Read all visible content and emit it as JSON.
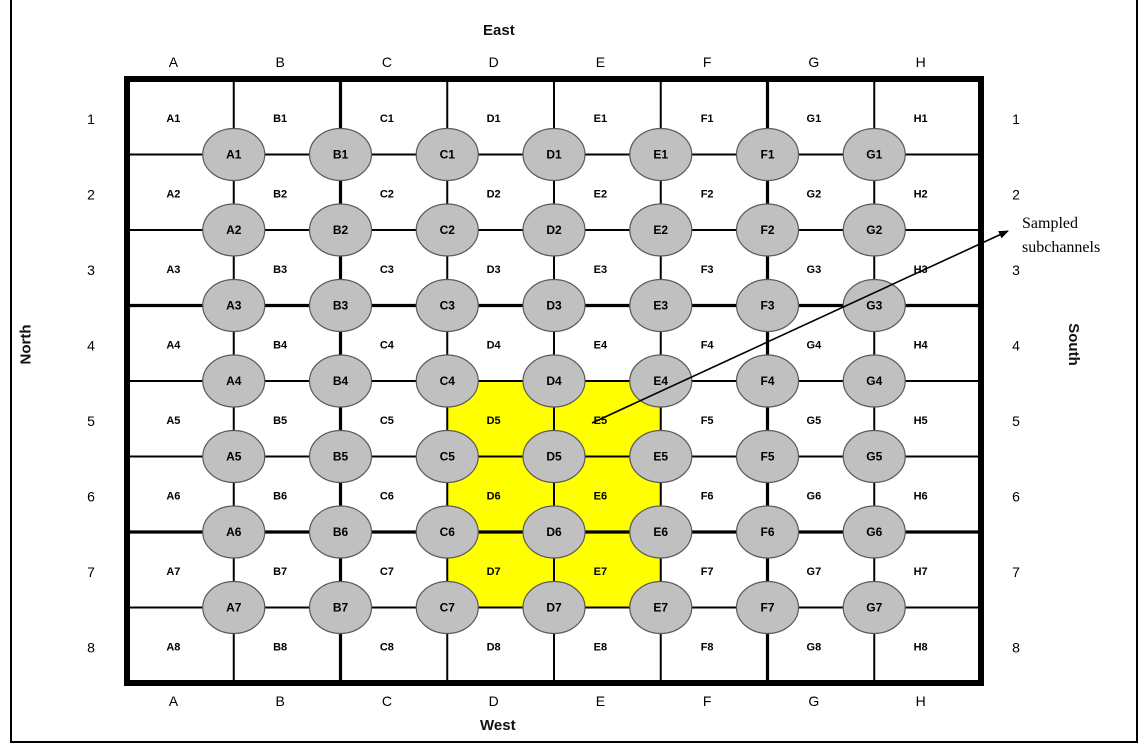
{
  "labels": {
    "top": "East",
    "bottom": "West",
    "left": "North",
    "right": "South",
    "annotation_line1": "Sampled",
    "annotation_line2": "subchannels"
  },
  "colors": {
    "grid": "#000000",
    "highlight": "#ffff00",
    "circle_fill": "#c0c0c0",
    "circle_stroke": "#5a5a5a"
  },
  "columns": [
    "A",
    "B",
    "C",
    "D",
    "E",
    "F",
    "G",
    "H"
  ],
  "rows": [
    "1",
    "2",
    "3",
    "4",
    "5",
    "6",
    "7",
    "8"
  ],
  "cell_labels": [
    [
      "A1",
      "B1",
      "C1",
      "D1",
      "E1",
      "F1",
      "G1",
      "H1"
    ],
    [
      "A2",
      "B2",
      "C2",
      "D2",
      "E2",
      "F2",
      "G2",
      "H2"
    ],
    [
      "A3",
      "B3",
      "C3",
      "D3",
      "E3",
      "F3",
      "G3",
      "H3"
    ],
    [
      "A4",
      "B4",
      "C4",
      "D4",
      "E4",
      "F4",
      "G4",
      "H4"
    ],
    [
      "A5",
      "B5",
      "C5",
      "D5",
      "E5",
      "F5",
      "G5",
      "H5"
    ],
    [
      "A6",
      "B6",
      "C6",
      "D6",
      "E6",
      "F6",
      "G6",
      "H6"
    ],
    [
      "A7",
      "B7",
      "C7",
      "D7",
      "E7",
      "F7",
      "G7",
      "H7"
    ],
    [
      "A8",
      "B8",
      "C8",
      "D8",
      "E8",
      "F8",
      "G8",
      "H8"
    ]
  ],
  "node_labels": [
    [
      "A1",
      "B1",
      "C1",
      "D1",
      "E1",
      "F1",
      "G1"
    ],
    [
      "A2",
      "B2",
      "C2",
      "D2",
      "E2",
      "F2",
      "G2"
    ],
    [
      "A3",
      "B3",
      "C3",
      "D3",
      "E3",
      "F3",
      "G3"
    ],
    [
      "A4",
      "B4",
      "C4",
      "D4",
      "E4",
      "F4",
      "G4"
    ],
    [
      "A5",
      "B5",
      "C5",
      "D5",
      "E5",
      "F5",
      "G5"
    ],
    [
      "A6",
      "B6",
      "C6",
      "D6",
      "E6",
      "F6",
      "G6"
    ],
    [
      "A7",
      "B7",
      "C7",
      "D7",
      "E7",
      "F7",
      "G7"
    ]
  ],
  "highlighted_cells": [
    {
      "col": 3,
      "row": 4
    },
    {
      "col": 4,
      "row": 4
    },
    {
      "col": 3,
      "row": 5
    },
    {
      "col": 4,
      "row": 5
    },
    {
      "col": 3,
      "row": 6
    },
    {
      "col": 4,
      "row": 6
    }
  ]
}
